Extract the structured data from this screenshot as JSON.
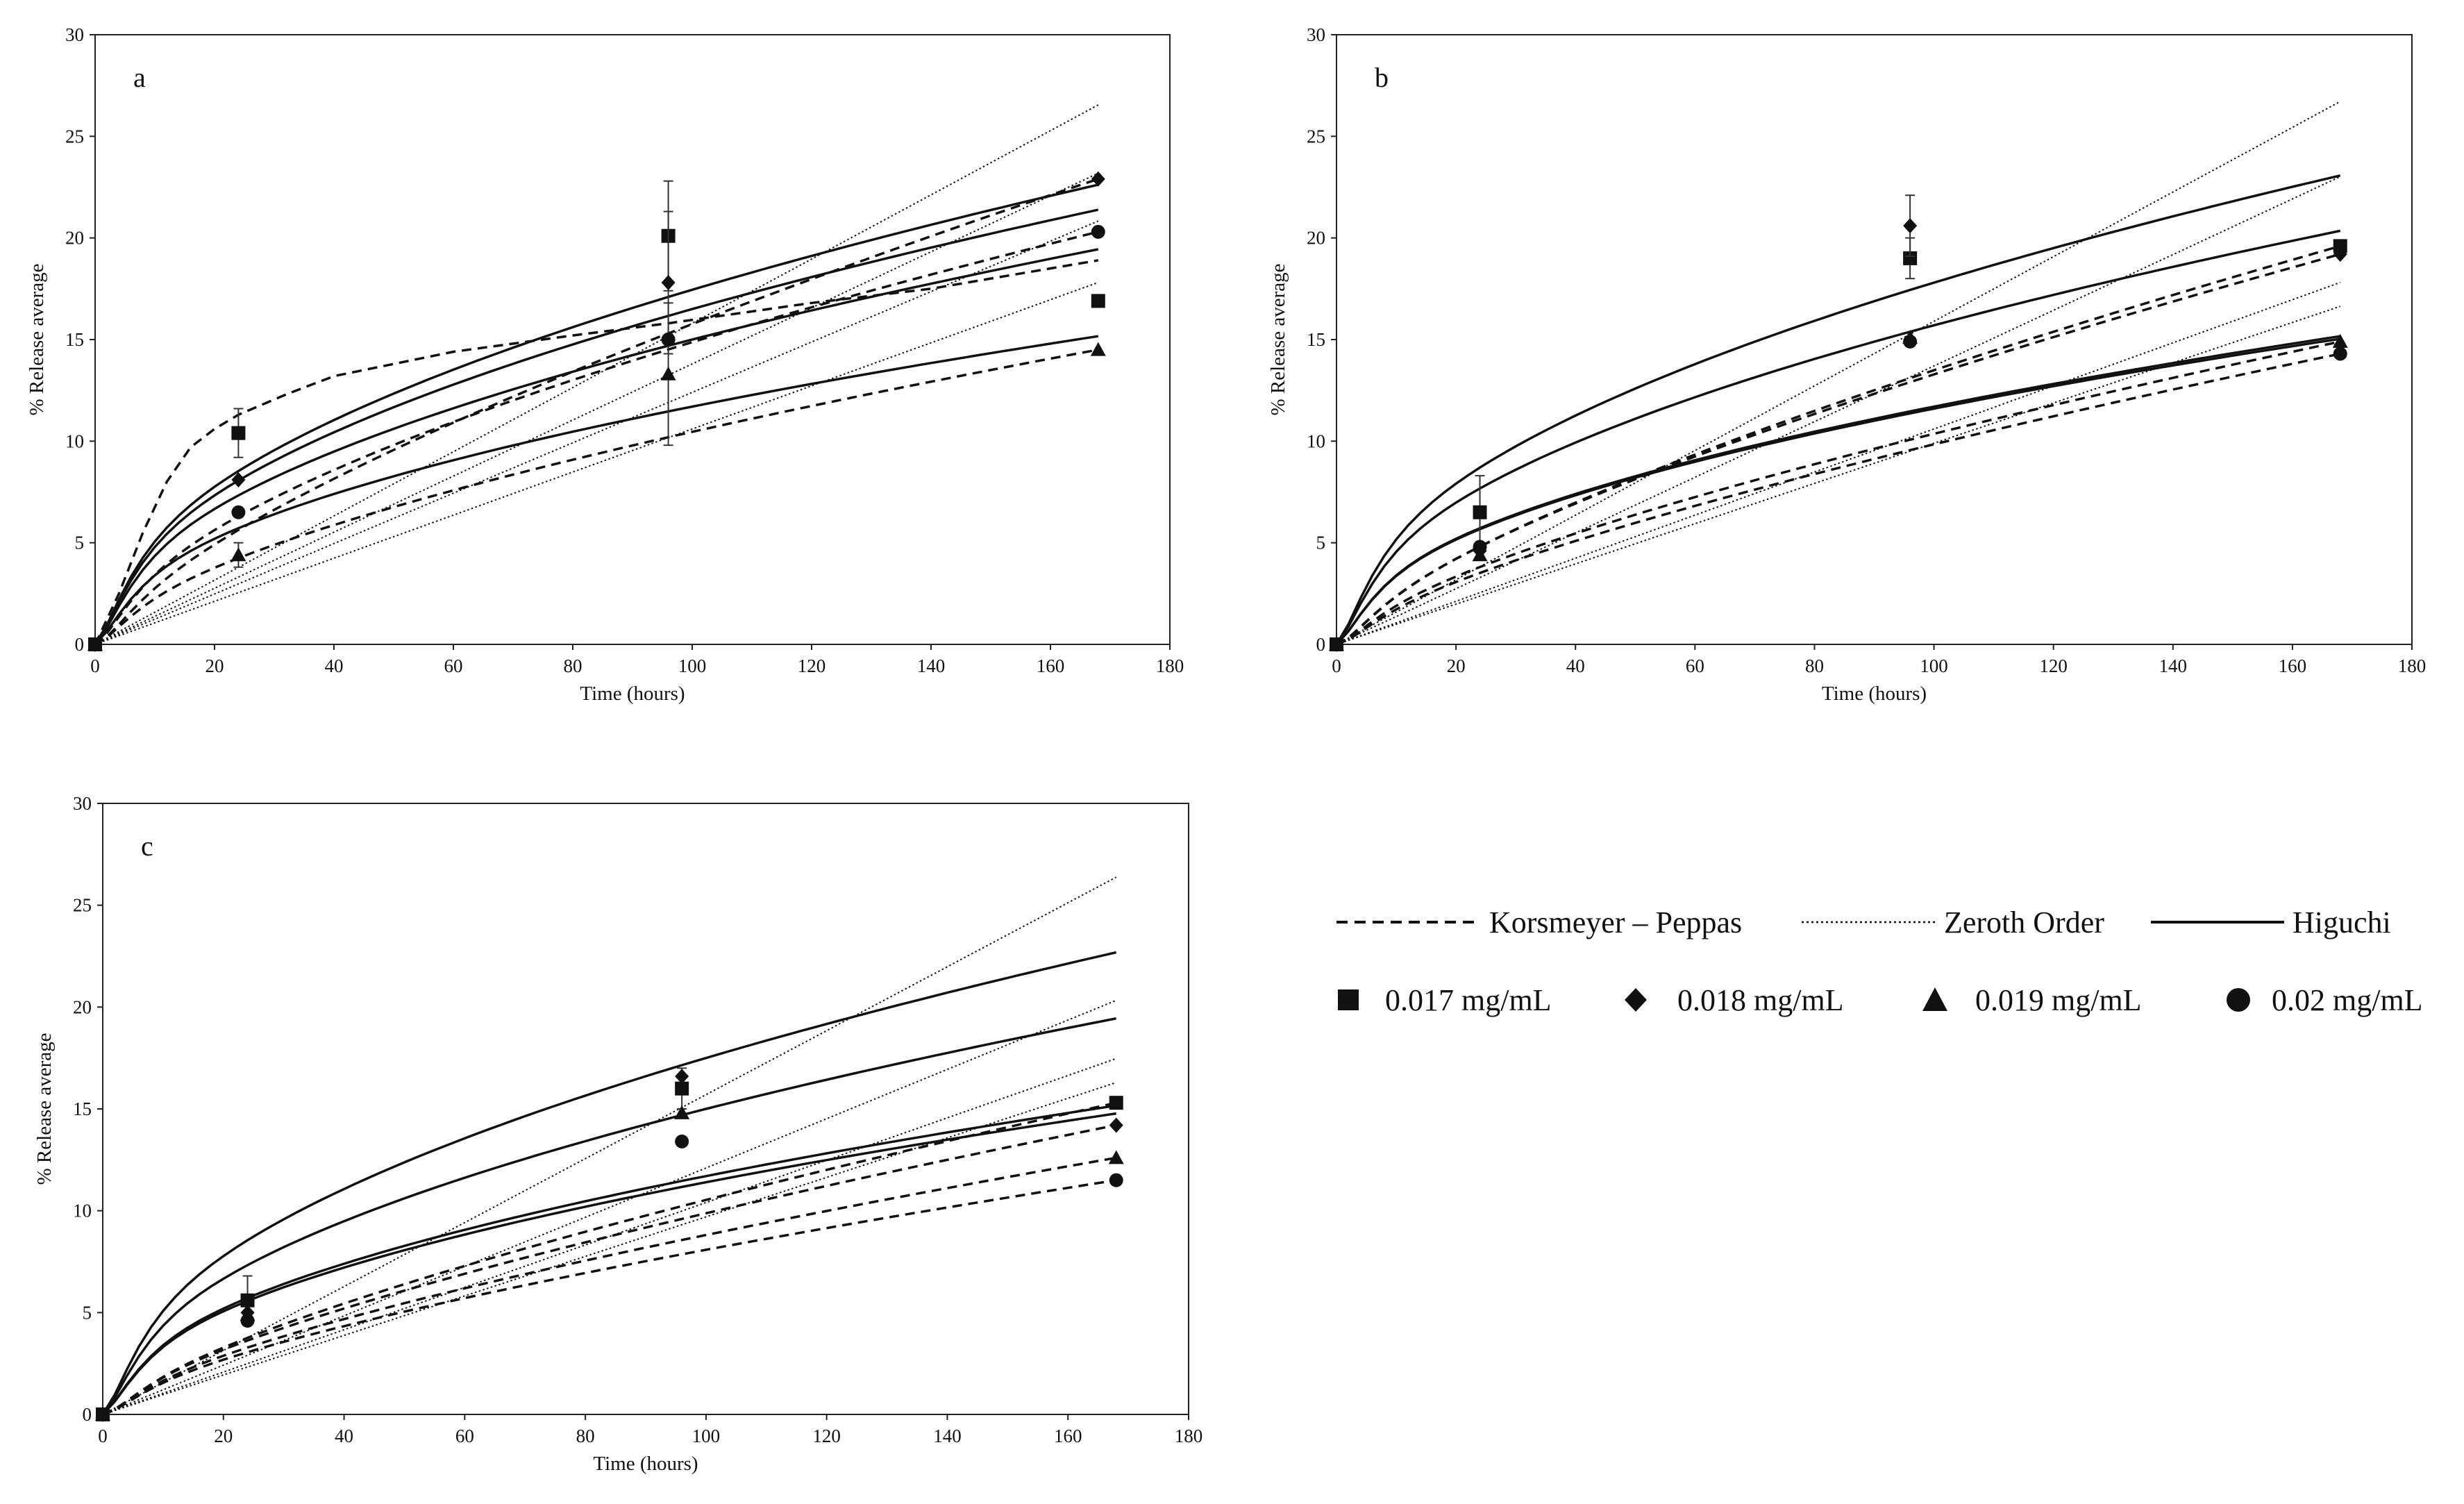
{
  "figure": {
    "legend": {
      "models": [
        {
          "label": "Korsmeyer – Peppas",
          "style": "dashed"
        },
        {
          "label": "Zeroth Order",
          "style": "dotted"
        },
        {
          "label": "Higuchi",
          "style": "solid"
        }
      ],
      "concentrations": [
        {
          "label": "0.017 mg/mL",
          "marker": "square"
        },
        {
          "label": "0.018 mg/mL",
          "marker": "diamond"
        },
        {
          "label": "0.019 mg/mL",
          "marker": "triangle"
        },
        {
          "label": "0.02 mg/mL",
          "marker": "circle"
        }
      ]
    }
  },
  "chart_data": [
    {
      "type": "scatter",
      "panel": "a",
      "title": "a",
      "xlabel": "Time (hours)",
      "ylabel": "% Release average",
      "xlim": [
        0,
        180
      ],
      "ylim": [
        0,
        30
      ],
      "xticks": [
        0,
        20,
        40,
        60,
        80,
        100,
        120,
        140,
        160,
        180
      ],
      "yticks": [
        0,
        5,
        10,
        15,
        20,
        25,
        30
      ],
      "x": [
        0,
        24,
        96,
        168
      ],
      "series": [
        {
          "name": "0.017 mg/mL",
          "marker": "square",
          "values": [
            0,
            10.4,
            20.1,
            16.9
          ],
          "errors": [
            0,
            1.2,
            2.7,
            0
          ],
          "fits": {
            "korsmeyer_peppas": {
              "x": [
                0,
                4,
                8,
                12,
                16,
                20,
                24,
                32,
                40,
                60,
                80,
                96,
                120,
                140,
                168
              ],
              "y": [
                0,
                2.5,
                5.5,
                8.0,
                9.7,
                10.6,
                11.3,
                12.3,
                13.2,
                14.4,
                15.2,
                15.8,
                16.8,
                17.5,
                18.9
              ]
            },
            "zero_order": 0.158,
            "higuchi": 1.745
          }
        },
        {
          "name": "0.018 mg/mL",
          "marker": "diamond",
          "values": [
            0,
            8.1,
            17.8,
            22.9
          ],
          "errors": [
            0,
            0,
            3.5,
            0
          ],
          "fits": {
            "korsmeyer_peppas": 0.72,
            "zero_order": 0.138,
            "higuchi": 1.65
          }
        },
        {
          "name": "0.019 mg/mL",
          "marker": "triangle",
          "values": [
            0,
            4.4,
            13.3,
            14.5
          ],
          "errors": [
            0,
            0.6,
            3.5,
            0
          ],
          "fits": {
            "korsmeyer_peppas": 0.63,
            "zero_order": 0.106,
            "higuchi": 1.17
          }
        },
        {
          "name": "0.02 mg/mL",
          "marker": "circle",
          "values": [
            0,
            6.5,
            15.0,
            20.3
          ],
          "errors": [
            0,
            0,
            0,
            0
          ],
          "fits": {
            "korsmeyer_peppas": 0.6,
            "zero_order": 0.124,
            "higuchi": 1.5
          }
        }
      ]
    },
    {
      "type": "scatter",
      "panel": "b",
      "title": "b",
      "xlabel": "Time (hours)",
      "ylabel": "% Release average",
      "xlim": [
        0,
        180
      ],
      "ylim": [
        0,
        30
      ],
      "xticks": [
        0,
        20,
        40,
        60,
        80,
        100,
        120,
        140,
        160,
        180
      ],
      "yticks": [
        0,
        5,
        10,
        15,
        20,
        25,
        30
      ],
      "x": [
        0,
        24,
        96,
        168
      ],
      "series": [
        {
          "name": "0.017 mg/mL",
          "marker": "square",
          "values": [
            0,
            6.5,
            19.0,
            19.6
          ],
          "errors": [
            0,
            1.8,
            1.0,
            0
          ],
          "fits": {
            "korsmeyer_peppas": 0.72,
            "zero_order": 0.159,
            "higuchi": 1.78
          }
        },
        {
          "name": "0.018 mg/mL",
          "marker": "diamond",
          "values": [
            0,
            4.6,
            20.6,
            19.2
          ],
          "errors": [
            0,
            0,
            1.5,
            0
          ],
          "fits": {
            "korsmeyer_peppas": 0.71,
            "zero_order": 0.137,
            "higuchi": 1.57
          }
        },
        {
          "name": "0.019 mg/mL",
          "marker": "triangle",
          "values": [
            0,
            4.4,
            15.1,
            14.9
          ],
          "errors": [
            0,
            0,
            0,
            0
          ],
          "fits": {
            "korsmeyer_peppas": 0.7,
            "zero_order": 0.106,
            "higuchi": 1.17
          }
        },
        {
          "name": "0.02 mg/mL",
          "marker": "circle",
          "values": [
            0,
            4.8,
            14.9,
            14.3
          ],
          "errors": [
            0,
            0,
            0,
            0
          ],
          "fits": {
            "korsmeyer_peppas": 0.72,
            "zero_order": 0.099,
            "higuchi": 1.16
          }
        }
      ]
    },
    {
      "type": "scatter",
      "panel": "c",
      "title": "c",
      "xlabel": "Time (hours)",
      "ylabel": "% Release average",
      "xlim": [
        0,
        180
      ],
      "ylim": [
        0,
        30
      ],
      "xticks": [
        0,
        20,
        40,
        60,
        80,
        100,
        120,
        140,
        160,
        180
      ],
      "yticks": [
        0,
        5,
        10,
        15,
        20,
        25,
        30
      ],
      "x": [
        0,
        24,
        96,
        168
      ],
      "series": [
        {
          "name": "0.017 mg/mL",
          "marker": "square",
          "values": [
            0,
            5.6,
            16.0,
            15.3
          ],
          "errors": [
            0,
            1.2,
            1.0,
            0
          ],
          "fits": {
            "korsmeyer_peppas": 0.72,
            "zero_order": 0.157,
            "higuchi": 1.75
          }
        },
        {
          "name": "0.018 mg/mL",
          "marker": "diamond",
          "values": [
            0,
            5.0,
            16.6,
            14.2
          ],
          "errors": [
            0,
            0,
            0,
            0
          ],
          "fits": {
            "korsmeyer_peppas": 0.7,
            "zero_order": 0.121,
            "higuchi": 1.5
          }
        },
        {
          "name": "0.019 mg/mL",
          "marker": "triangle",
          "values": [
            0,
            4.9,
            14.8,
            12.6
          ],
          "errors": [
            0,
            0,
            0,
            0
          ],
          "fits": {
            "korsmeyer_peppas": 0.69,
            "zero_order": 0.104,
            "higuchi": 1.17
          }
        },
        {
          "name": "0.02 mg/mL",
          "marker": "circle",
          "values": [
            0,
            4.6,
            13.4,
            11.5
          ],
          "errors": [
            0,
            0,
            0,
            0
          ],
          "fits": {
            "korsmeyer_peppas": 0.68,
            "zero_order": 0.097,
            "higuchi": 1.14
          }
        }
      ]
    }
  ]
}
